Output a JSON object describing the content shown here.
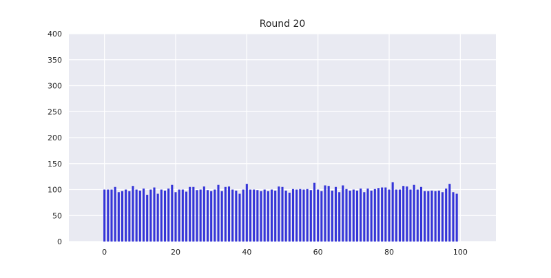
{
  "chart_data": {
    "type": "bar",
    "title": "Round  20",
    "xlabel": "",
    "ylabel": "",
    "xlim": [
      -10,
      110
    ],
    "ylim": [
      0,
      400
    ],
    "xticks": [
      0,
      20,
      40,
      60,
      80,
      100
    ],
    "yticks": [
      0,
      50,
      100,
      150,
      200,
      250,
      300,
      350,
      400
    ],
    "grid": true,
    "legend": "none",
    "bar_width": 0.6,
    "x": [
      0,
      1,
      2,
      3,
      4,
      5,
      6,
      7,
      8,
      9,
      10,
      11,
      12,
      13,
      14,
      15,
      16,
      17,
      18,
      19,
      20,
      21,
      22,
      23,
      24,
      25,
      26,
      27,
      28,
      29,
      30,
      31,
      32,
      33,
      34,
      35,
      36,
      37,
      38,
      39,
      40,
      41,
      42,
      43,
      44,
      45,
      46,
      47,
      48,
      49,
      50,
      51,
      52,
      53,
      54,
      55,
      56,
      57,
      58,
      59,
      60,
      61,
      62,
      63,
      64,
      65,
      66,
      67,
      68,
      69,
      70,
      71,
      72,
      73,
      74,
      75,
      76,
      77,
      78,
      79,
      80,
      81,
      82,
      83,
      84,
      85,
      86,
      87,
      88,
      89,
      90,
      91,
      92,
      93,
      94,
      95,
      96,
      97,
      98,
      99
    ],
    "values": [
      100,
      100,
      100,
      105,
      95,
      97,
      100,
      97,
      107,
      100,
      98,
      102,
      90,
      100,
      104,
      92,
      100,
      98,
      102,
      109,
      95,
      100,
      100,
      96,
      105,
      105,
      99,
      100,
      106,
      99,
      97,
      100,
      109,
      97,
      105,
      106,
      100,
      98,
      92,
      100,
      111,
      100,
      100,
      99,
      97,
      100,
      97,
      100,
      98,
      106,
      105,
      98,
      94,
      101,
      100,
      101,
      100,
      101,
      99,
      113,
      100,
      97,
      108,
      107,
      98,
      105,
      95,
      108,
      101,
      98,
      100,
      98,
      102,
      95,
      102,
      98,
      101,
      103,
      104,
      104,
      100,
      114,
      100,
      100,
      107,
      106,
      100,
      109,
      100,
      105,
      97,
      97,
      98,
      97,
      98,
      95,
      102,
      111,
      95,
      92
    ],
    "colors": {
      "bar": "#3535d8",
      "plot_background": "#e9eaf2",
      "grid": "#ffffff"
    }
  }
}
